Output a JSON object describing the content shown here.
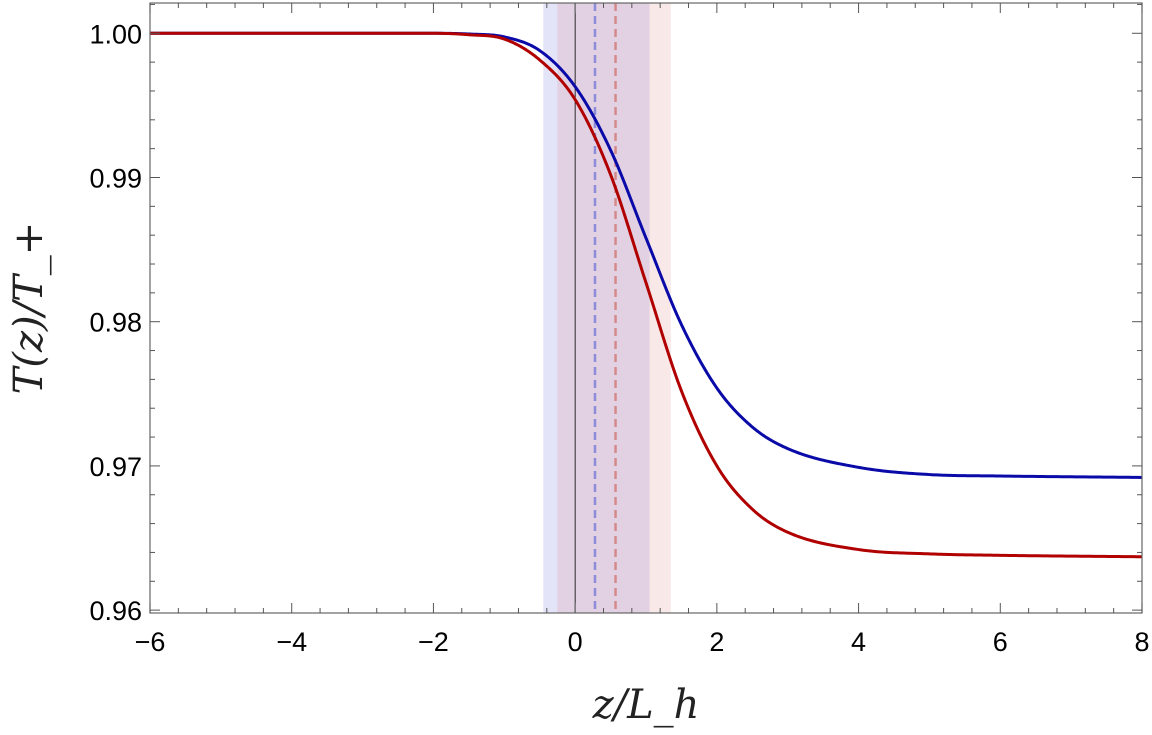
{
  "chart_data": {
    "type": "line",
    "title": "",
    "xlabel": "z/L_h",
    "ylabel": "T(z)/T_+",
    "xlim": [
      -6,
      8
    ],
    "ylim": [
      0.9598,
      1.0021
    ],
    "x_ticks": [
      {
        "value": -6,
        "label": "−6"
      },
      {
        "value": -4,
        "label": "−4"
      },
      {
        "value": -2,
        "label": "−2"
      },
      {
        "value": 0,
        "label": "0"
      },
      {
        "value": 2,
        "label": "2"
      },
      {
        "value": 4,
        "label": "4"
      },
      {
        "value": 6,
        "label": "6"
      },
      {
        "value": 8,
        "label": "8"
      }
    ],
    "y_ticks": [
      {
        "value": 0.96,
        "label": "0.96"
      },
      {
        "value": 0.97,
        "label": "0.97"
      },
      {
        "value": 0.98,
        "label": "0.98"
      },
      {
        "value": 0.99,
        "label": "0.99"
      },
      {
        "value": 1.0,
        "label": "1.00"
      }
    ],
    "grid": false,
    "series": [
      {
        "color": "#0a0aa8",
        "x": [
          -6,
          -3,
          -2,
          -1.5,
          -1,
          -0.5,
          0,
          0.5,
          1,
          1.5,
          2,
          2.5,
          3,
          4,
          5,
          6,
          8
        ],
        "y": [
          1.0,
          1.0,
          1.0,
          0.99995,
          0.99975,
          0.9988,
          0.9963,
          0.9919,
          0.9858,
          0.9798,
          0.9754,
          0.9727,
          0.9712,
          0.9699,
          0.9694,
          0.9693,
          0.9692
        ]
      },
      {
        "color": "#b00000",
        "x": [
          -6,
          -3,
          -2,
          -1.5,
          -1,
          -0.5,
          0,
          0.5,
          1,
          1.5,
          2,
          2.5,
          3,
          4,
          5,
          6,
          8
        ],
        "y": [
          1.0,
          1.0,
          1.0,
          0.9999,
          0.9996,
          0.99815,
          0.9954,
          0.9902,
          0.9827,
          0.9752,
          0.97,
          0.967,
          0.9654,
          0.9642,
          0.9639,
          0.9638,
          0.9637
        ]
      }
    ],
    "bands": [
      {
        "x0": -0.45,
        "x1": 1.05,
        "color": "#6a6ad8",
        "opacity": 0.18
      },
      {
        "x0": -0.25,
        "x1": 1.35,
        "color": "#d87070",
        "opacity": 0.16
      }
    ],
    "vlines": [
      {
        "x": 0,
        "color": "#000000",
        "style": "solid"
      },
      {
        "x": 0.28,
        "color": "#8c8cd8",
        "style": "dashed"
      },
      {
        "x": 0.57,
        "color": "#d48a8a",
        "style": "dashed"
      }
    ]
  }
}
